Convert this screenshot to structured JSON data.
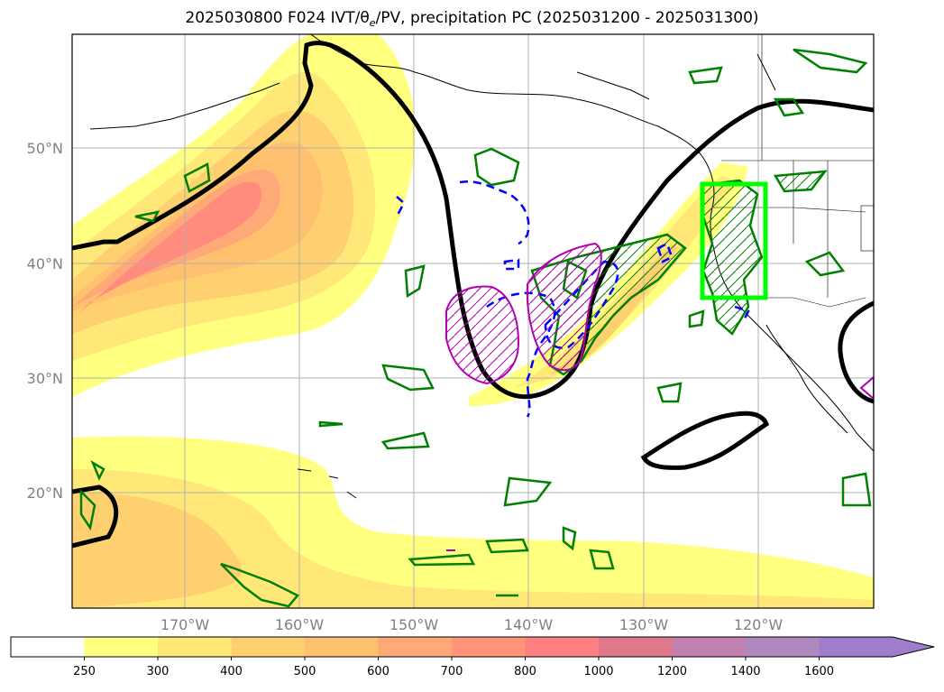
{
  "figure": {
    "title_prefix": "2025030800 F024 IVT/",
    "title_theta": "θ",
    "title_sub": "e",
    "title_suffix": "/PV, precipitation PC (2025031200 - 2025031300)"
  },
  "map": {
    "lat_labels": [
      "50°N",
      "40°N",
      "30°N",
      "20°N"
    ],
    "lon_labels": [
      "170°W",
      "160°W",
      "150°W",
      "140°W",
      "130°W",
      "120°W"
    ],
    "grid": true,
    "colors": {
      "pv_contour": "#000000",
      "precip_pc_contour": "#008000",
      "theta_e_contour": "#0000ff",
      "magenta_contour": "#b000b0",
      "target_box": "#00ff00"
    }
  },
  "colorbar": {
    "ticks": [
      "250",
      "300",
      "400",
      "500",
      "600",
      "700",
      "800",
      "1000",
      "1200",
      "1400",
      "1600"
    ],
    "colors": [
      "#ffffff",
      "#ffff80",
      "#ffe878",
      "#ffd070",
      "#ffc070",
      "#ffa878",
      "#ff9478",
      "#ff8080",
      "#e0788c",
      "#c080b0",
      "#b088c0",
      "#a07ccc"
    ],
    "extend": "max"
  }
}
